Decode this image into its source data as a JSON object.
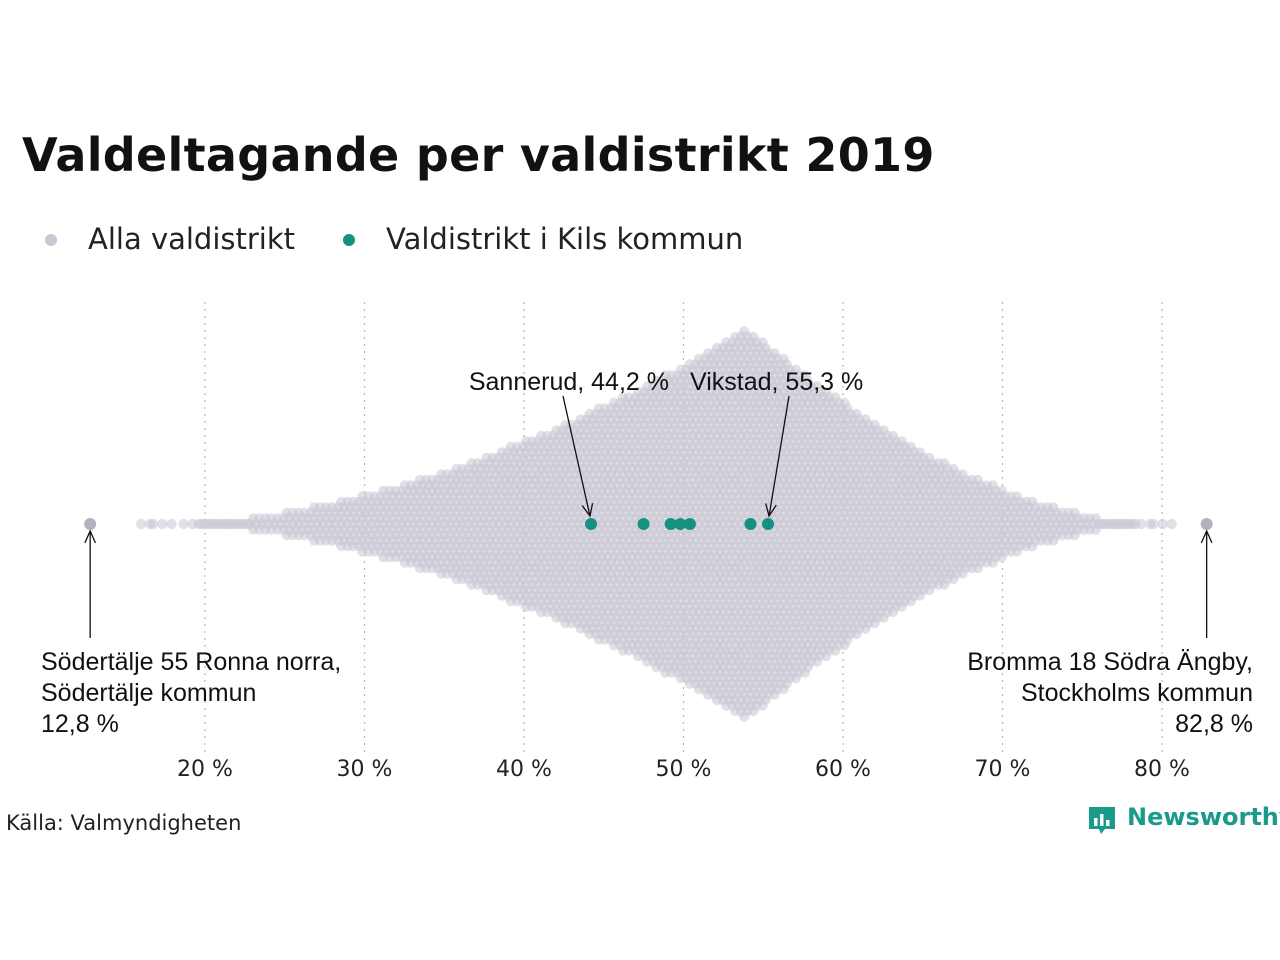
{
  "title": "Valdeltagande per valdistrikt 2019",
  "legend": {
    "all_label": "Alla valdistrikt",
    "kil_label": "Valdistrikt i Kils kommun"
  },
  "colors": {
    "all": "#c9c7d4",
    "kil": "#14917f",
    "grid": "#b5b5b5",
    "brand": "#1a9a8a"
  },
  "source": "Källa: Valmyndigheten",
  "brand": {
    "name": "Newsworthy",
    "logo_icon": "bar-chart-speech-bubble-icon"
  },
  "chart_data": {
    "type": "scatter",
    "subtype": "beeswarm",
    "x_axis": {
      "range": [
        12.8,
        82.8
      ],
      "ticks": [
        20,
        30,
        40,
        50,
        60,
        70,
        80
      ],
      "tick_labels": [
        "20 %",
        "30 %",
        "40 %",
        "50 %",
        "60 %",
        "70 %",
        "80 %"
      ],
      "grid": "vertical dotted"
    },
    "series": [
      {
        "name": "Alla valdistrikt",
        "color": "#c9c7d4",
        "distribution_peak": 54.0,
        "min": 12.8,
        "max": 82.8
      },
      {
        "name": "Valdistrikt i Kils kommun",
        "color": "#14917f",
        "values": [
          44.2,
          47.5,
          49.2,
          49.8,
          50.4,
          54.2,
          55.3
        ]
      }
    ],
    "annotations": [
      {
        "label": "Sannerud, 44,2 %",
        "x": 44.2
      },
      {
        "label": "Vikstad, 55,3 %",
        "x": 55.3
      },
      {
        "lines": [
          "Södertälje 55 Ronna norra,",
          "Södertälje kommun",
          "12,8 %"
        ],
        "x": 12.8
      },
      {
        "lines": [
          "Bromma 18 Södra Ängby,",
          "Stockholms kommun",
          "82,8 %"
        ],
        "x": 82.8
      }
    ]
  }
}
